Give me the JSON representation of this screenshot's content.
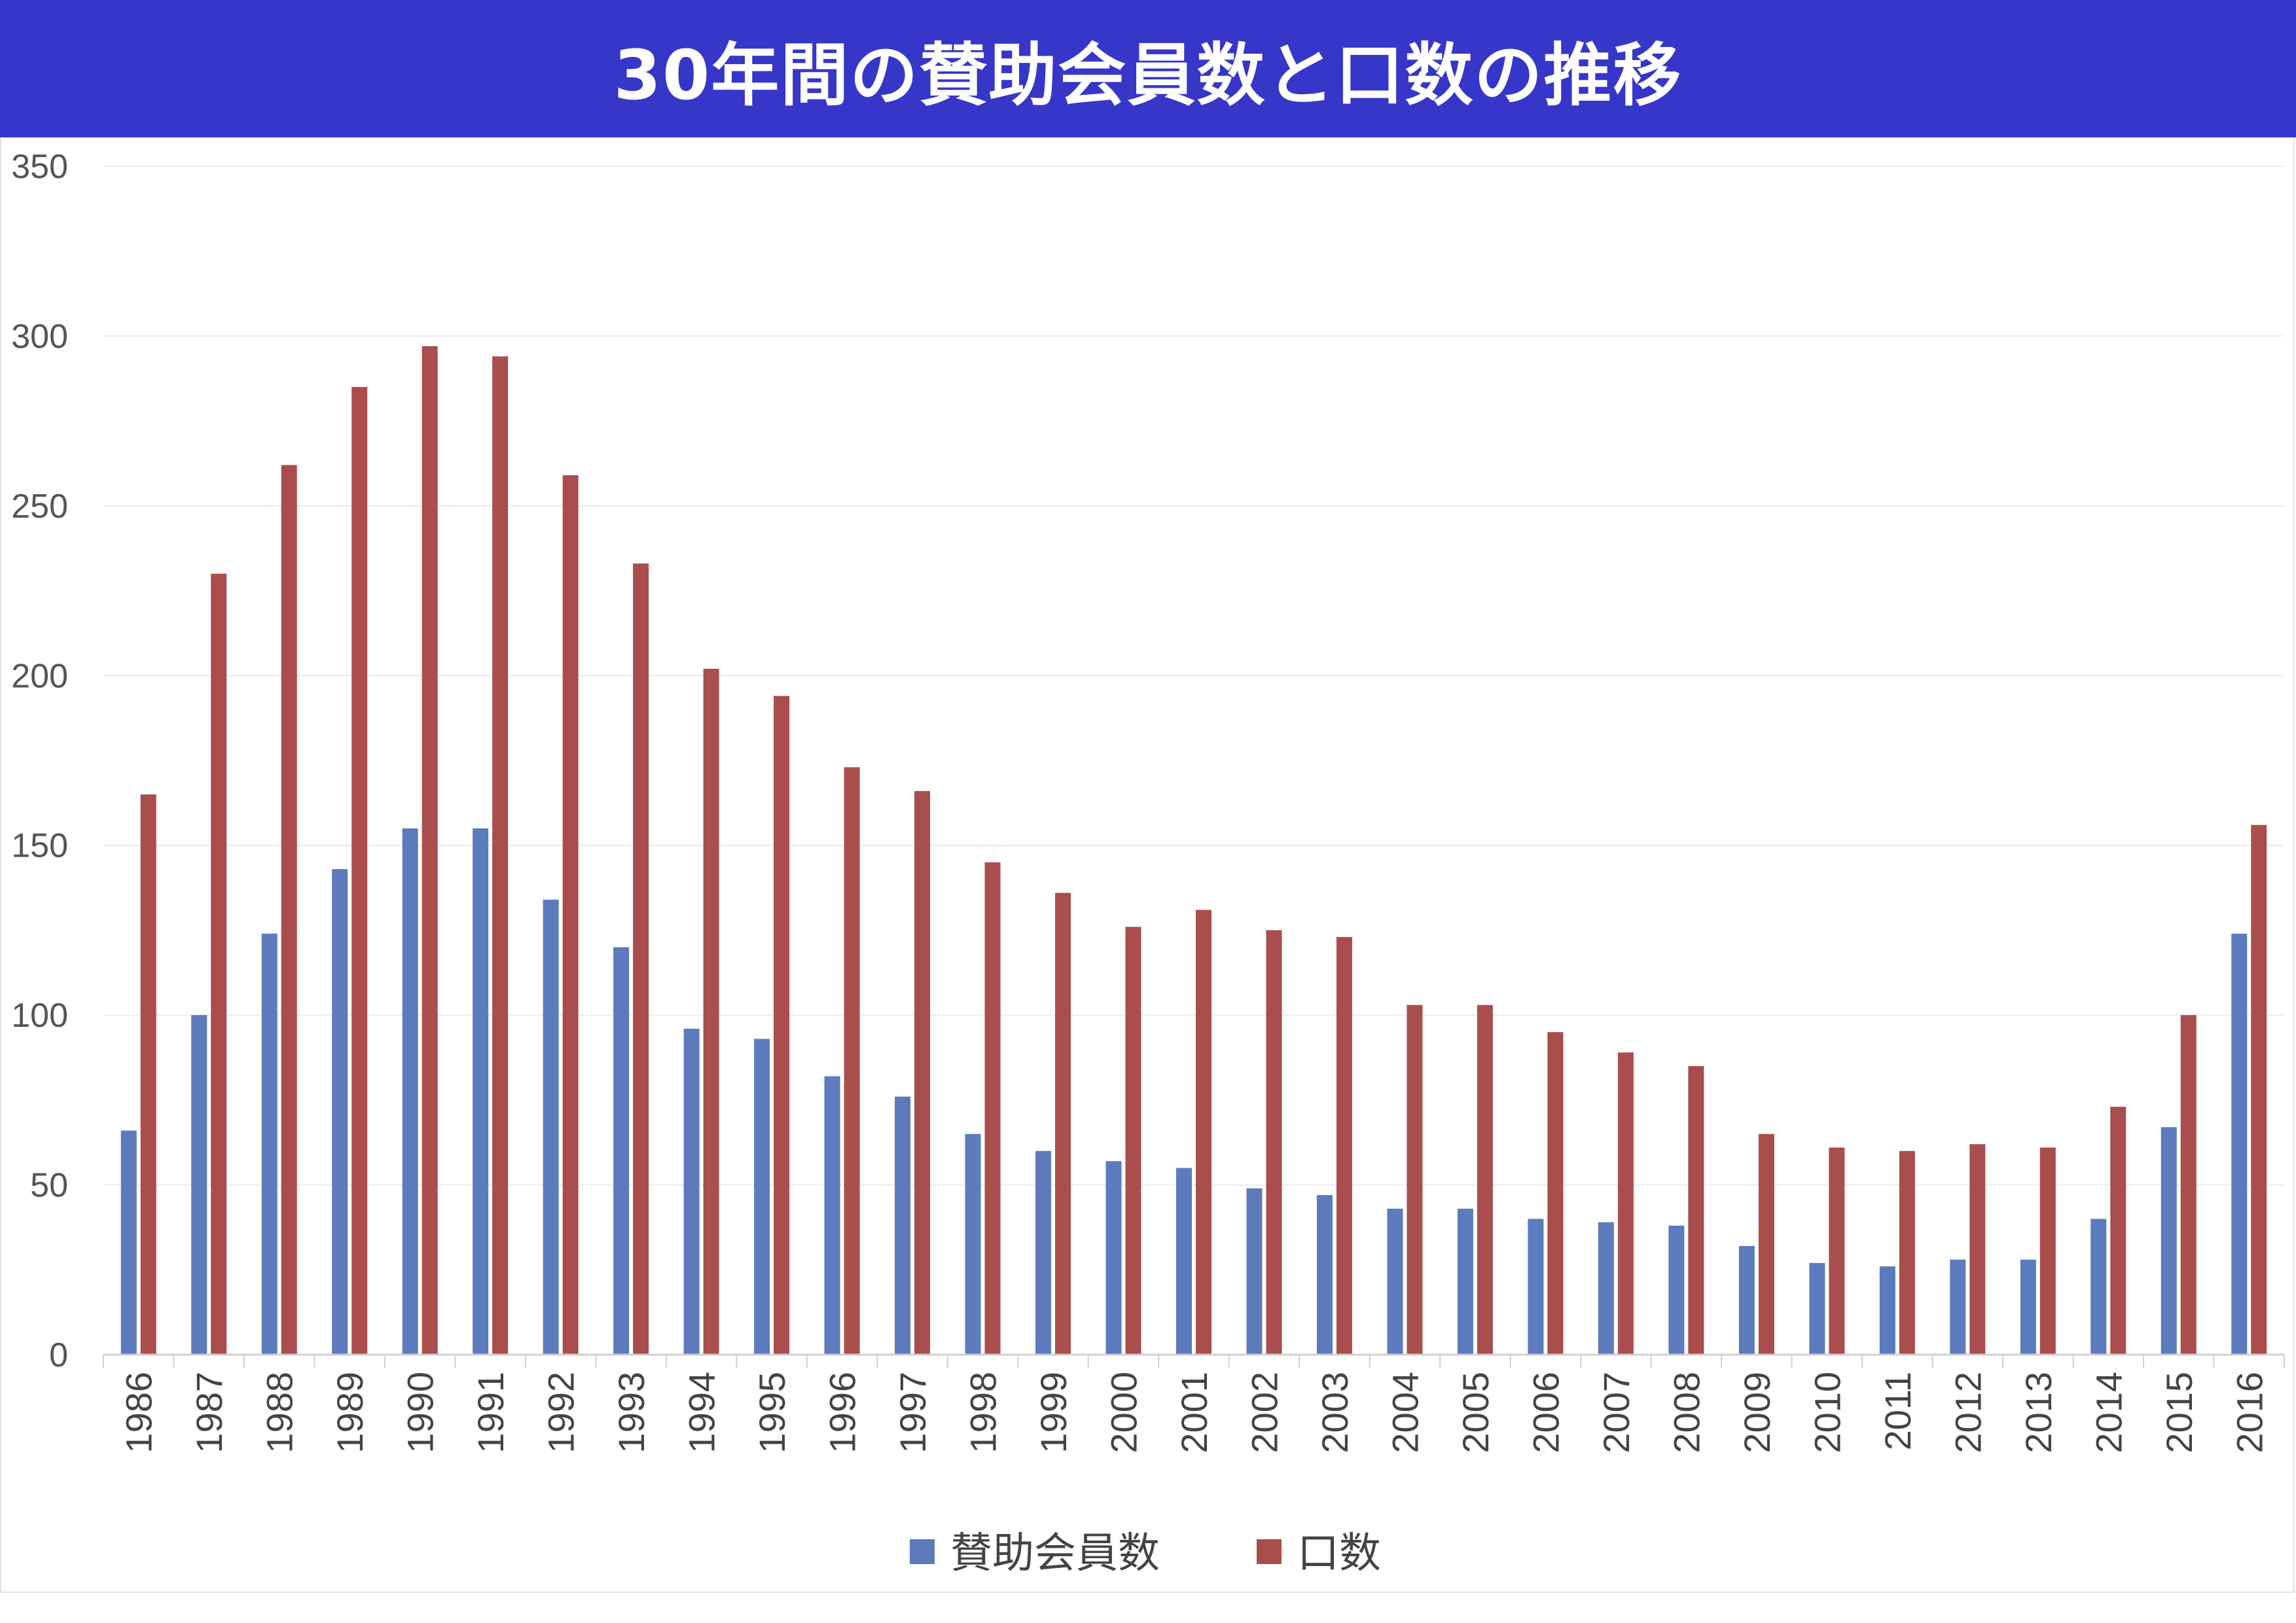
{
  "title": "30年間の賛助会員数と口数の推移",
  "chart_data": {
    "type": "bar",
    "title": "30年間の賛助会員数と口数の推移",
    "xlabel": "",
    "ylabel": "",
    "ylim": [
      0,
      350
    ],
    "yticks": [
      0,
      50,
      100,
      150,
      200,
      250,
      300,
      350
    ],
    "grid": true,
    "legend_position": "bottom",
    "categories": [
      "1986",
      "1987",
      "1988",
      "1989",
      "1990",
      "1991",
      "1992",
      "1993",
      "1994",
      "1995",
      "1996",
      "1997",
      "1998",
      "1999",
      "2000",
      "2001",
      "2002",
      "2003",
      "2004",
      "2005",
      "2006",
      "2007",
      "2008",
      "2009",
      "2010",
      "2011",
      "2012",
      "2013",
      "2014",
      "2015",
      "2016"
    ],
    "series": [
      {
        "name": "賛助会員数",
        "color": "#5b7bbd",
        "values": [
          66,
          100,
          124,
          143,
          155,
          155,
          134,
          120,
          96,
          93,
          82,
          76,
          65,
          60,
          57,
          55,
          49,
          47,
          43,
          43,
          40,
          39,
          38,
          32,
          27,
          26,
          28,
          28,
          40,
          67,
          124
        ]
      },
      {
        "name": "口数",
        "color": "#a94d4d",
        "values": [
          165,
          230,
          262,
          285,
          297,
          294,
          259,
          233,
          202,
          194,
          173,
          166,
          145,
          136,
          126,
          131,
          125,
          123,
          103,
          103,
          95,
          89,
          85,
          65,
          61,
          60,
          62,
          61,
          73,
          100,
          156
        ]
      }
    ]
  }
}
